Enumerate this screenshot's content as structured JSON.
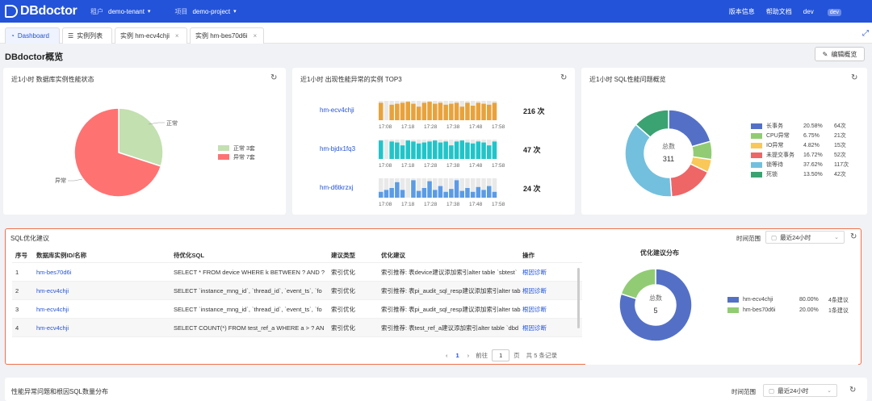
{
  "app": {
    "logo": "DBdoctor"
  },
  "header": {
    "tenant_label": "租户",
    "tenant_value": "demo-tenant",
    "project_label": "项目",
    "project_value": "demo-project",
    "version_info": "版本信息",
    "help_docs": "帮助文档",
    "user": "dev",
    "user_badge": "dev"
  },
  "tabs": [
    {
      "label": "Dashboard"
    },
    {
      "label": "实例列表"
    },
    {
      "label": "实例 hm-ecv4chji"
    },
    {
      "label": "实例 hm-bes70d6i"
    }
  ],
  "page": {
    "title": "DBdoctor概览",
    "edit_button": "编辑概览"
  },
  "status_card": {
    "title": "近1小时 数据库实例性能状态",
    "pie_labels": {
      "normal": "正常",
      "abnormal": "异常"
    },
    "legend": [
      {
        "label": "正常 3套",
        "color": "#c3e0b0"
      },
      {
        "label": "异常 7套",
        "color": "#ff7272"
      }
    ],
    "values": {
      "normal": 3,
      "abnormal": 7
    }
  },
  "top3_card": {
    "title": "近1小时 出现性能异常的实例 TOP3",
    "x_ticks": [
      "17:08",
      "17:18",
      "17:28",
      "17:38",
      "17:48",
      "17:58"
    ],
    "rows": [
      {
        "name": "hm-ecv4chji",
        "count": "216 次",
        "color": "#e9a23b",
        "values": [
          0.9,
          0,
          0.8,
          0.85,
          0.9,
          0.95,
          0.85,
          0.7,
          0.9,
          0.95,
          0.85,
          0.9,
          0.8,
          0.85,
          0.9,
          0.7,
          0.9,
          0.75,
          0.9,
          0.85,
          0.8,
          0.9
        ]
      },
      {
        "name": "hm-bjdx1fq3",
        "count": "47 次",
        "color": "#21c4c9",
        "values": [
          0.95,
          0,
          0.9,
          0.85,
          0.7,
          0.95,
          0.9,
          0.8,
          0.85,
          0.9,
          0.95,
          0.85,
          0.9,
          0.7,
          0.9,
          0.95,
          0.85,
          0.8,
          0.9,
          0.85,
          0.7,
          0.9
        ]
      },
      {
        "name": "hm-d6tkrzxj",
        "count": "24 次",
        "color": "#5b9be6",
        "values": [
          0.3,
          0.4,
          0.5,
          0.8,
          0.4,
          0,
          0.9,
          0.35,
          0.5,
          0.85,
          0.4,
          0.6,
          0.3,
          0.45,
          0.9,
          0.35,
          0.5,
          0.3,
          0.55,
          0.4,
          0.6,
          0.3
        ]
      }
    ]
  },
  "sql_overview": {
    "title": "近1小时 SQL性能问题概览",
    "center_label": "总数",
    "center_value": "311",
    "legend": [
      {
        "label": "长事务",
        "pct": "20.58%",
        "count": "64次",
        "color": "#5470c6"
      },
      {
        "label": "CPU异常",
        "pct": "6.75%",
        "count": "21次",
        "color": "#91cc75"
      },
      {
        "label": "IO异常",
        "pct": "4.82%",
        "count": "15次",
        "color": "#fac858"
      },
      {
        "label": "未提交事务",
        "pct": "16.72%",
        "count": "52次",
        "color": "#ee6666"
      },
      {
        "label": "锁等待",
        "pct": "37.62%",
        "count": "117次",
        "color": "#73c0de"
      },
      {
        "label": "死锁",
        "pct": "13.50%",
        "count": "42次",
        "color": "#3ba272"
      }
    ],
    "values": [
      20.58,
      6.75,
      4.82,
      16.72,
      37.62,
      13.5
    ]
  },
  "sql_advice": {
    "title": "SQL优化建议",
    "time_label": "时间范围",
    "time_value": "最近24小时",
    "columns": [
      "序号",
      "数据库实例ID/名称",
      "待优化SQL",
      "建议类型",
      "优化建议",
      "操作"
    ],
    "rows": [
      {
        "no": "1",
        "instance": "hm-bes70d6i",
        "sql": "SELECT * FROM device WHERE k BETWEEN ? AND ?",
        "type": "索引优化",
        "advice": "索引推荐: 表device建议添加索引alter table `sbtest`",
        "action": "根因诊断"
      },
      {
        "no": "2",
        "instance": "hm-ecv4chji",
        "sql": "SELECT `instance_mng_id`, `thread_id`, `event_ts`, `fo",
        "type": "索引优化",
        "advice": "索引推荐: 表pi_audit_sql_resp建议添加索引alter tab",
        "action": "根因诊断"
      },
      {
        "no": "3",
        "instance": "hm-ecv4chji",
        "sql": "SELECT `instance_mng_id`, `thread_id`, `event_ts`, `fo",
        "type": "索引优化",
        "advice": "索引推荐: 表pi_audit_sql_resp建议添加索引alter tab",
        "action": "根因诊断"
      },
      {
        "no": "4",
        "instance": "hm-ecv4chji",
        "sql": "SELECT COUNT(*) FROM test_ref_a WHERE a > ? AN",
        "type": "索引优化",
        "advice": "索引推荐: 表test_ref_a建议添加索引alter table `dbd",
        "action": "根因诊断"
      }
    ],
    "pager": {
      "current": "1",
      "goto_label": "前往",
      "goto_value": "1",
      "page_suffix": "页",
      "total": "共 5 条记录"
    },
    "dist": {
      "title": "优化建议分布",
      "center_label": "总数",
      "center_value": "5",
      "legend": [
        {
          "label": "hm-ecv4chji",
          "pct": "80.00%",
          "count": "4条建议",
          "color": "#5470c6"
        },
        {
          "label": "hm-bes70d6i",
          "pct": "20.00%",
          "count": "1条建议",
          "color": "#91cc75"
        }
      ],
      "values": [
        80,
        20
      ]
    }
  },
  "bottom_card": {
    "title": "性能异常问题和根因SQL数量分布",
    "time_label": "时间范围",
    "time_value": "最近24小时"
  }
}
